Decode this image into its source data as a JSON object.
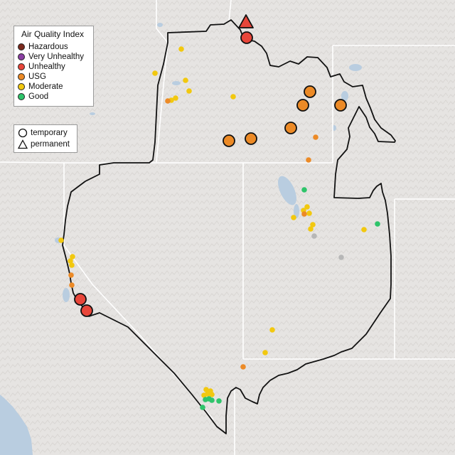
{
  "legend": {
    "title": "Air Quality Index",
    "aqi_items": [
      {
        "label": "Hazardous",
        "color": "#7b2a1e"
      },
      {
        "label": "Very Unhealthy",
        "color": "#8b3fa3"
      },
      {
        "label": "Unhealthy",
        "color": "#e8463a"
      },
      {
        "label": "USG",
        "color": "#ec8a26"
      },
      {
        "label": "Moderate",
        "color": "#f2c80f"
      },
      {
        "label": "Good",
        "color": "#2ec46a"
      }
    ],
    "type_items": [
      {
        "label": "temporary",
        "icon": "circle-icon"
      },
      {
        "label": "permanent",
        "icon": "triangle-icon"
      }
    ]
  },
  "colors": {
    "land": "#e6e4e2",
    "water": "#b9cde0",
    "boundary": "#111111",
    "state_lines": "#ffffff",
    "no_data": "#b7b7b7"
  }
}
